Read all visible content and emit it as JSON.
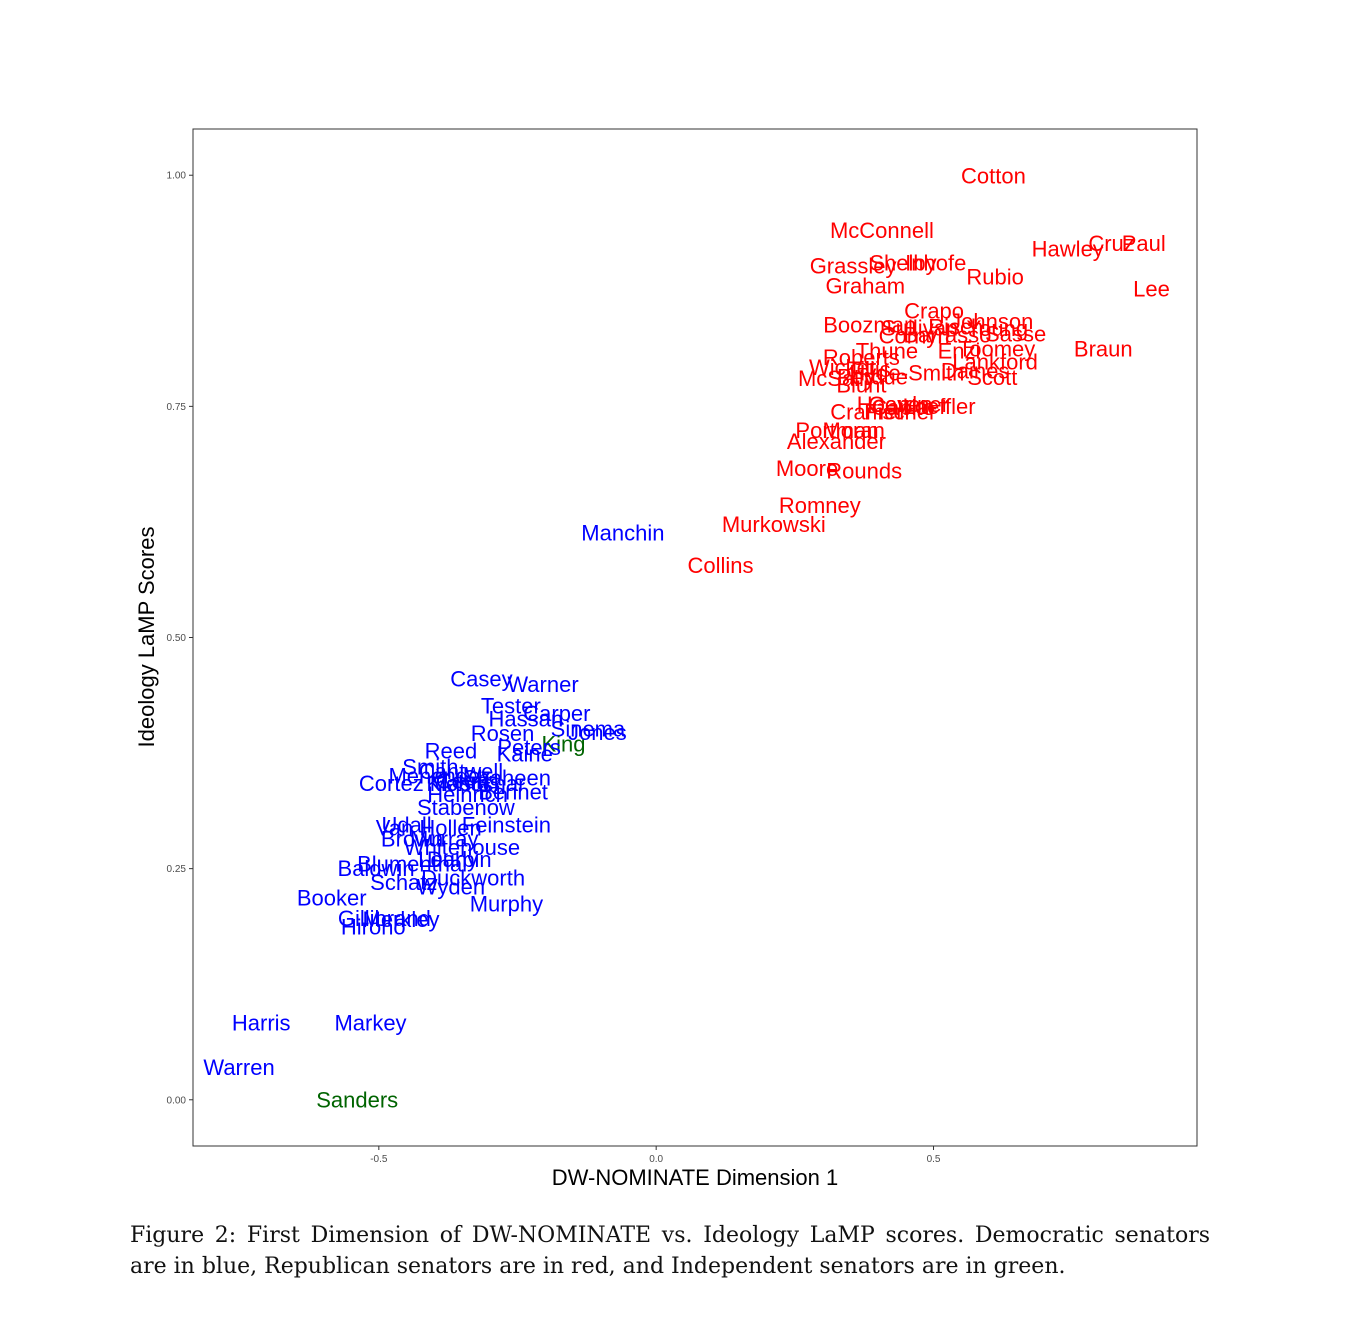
{
  "chart_data": {
    "type": "scatter",
    "title": "",
    "xlabel": "DW-NOMINATE Dimension 1",
    "ylabel": "Ideology LaMP Scores",
    "xlim": [
      -0.835,
      0.975
    ],
    "ylim": [
      -0.05,
      1.05
    ],
    "xticks": [
      {
        "v": -0.5,
        "label": "-0.5"
      },
      {
        "v": 0,
        "label": "0.0"
      },
      {
        "v": 0.5,
        "label": "0.5"
      }
    ],
    "yticks": [
      {
        "v": 0,
        "label": "0.00"
      },
      {
        "v": 0.25,
        "label": "0.25"
      },
      {
        "v": 0.5,
        "label": "0.50"
      },
      {
        "v": 0.75,
        "label": "0.75"
      },
      {
        "v": 1.0,
        "label": "1.00"
      }
    ],
    "grid": false,
    "legend": "none",
    "colors": {
      "Democratic": "#0000ff",
      "Republican": "#ff0000",
      "Independent": "#006400"
    },
    "points": [
      {
        "label": "Cotton",
        "x": 0.608,
        "y": 0.999,
        "party": "Republican"
      },
      {
        "label": "McConnell",
        "x": 0.407,
        "y": 0.94,
        "party": "Republican"
      },
      {
        "label": "Hawley",
        "x": 0.742,
        "y": 0.92,
        "party": "Republican"
      },
      {
        "label": "Cruz",
        "x": 0.821,
        "y": 0.926,
        "party": "Republican"
      },
      {
        "label": "Paul",
        "x": 0.879,
        "y": 0.926,
        "party": "Republican"
      },
      {
        "label": "Grassley",
        "x": 0.355,
        "y": 0.902,
        "party": "Republican"
      },
      {
        "label": "Shelby",
        "x": 0.445,
        "y": 0.905,
        "party": "Republican"
      },
      {
        "label": "Inhofe",
        "x": 0.504,
        "y": 0.905,
        "party": "Republican"
      },
      {
        "label": "Rubio",
        "x": 0.611,
        "y": 0.89,
        "party": "Republican"
      },
      {
        "label": "Graham",
        "x": 0.377,
        "y": 0.88,
        "party": "Republican"
      },
      {
        "label": "Lee",
        "x": 0.893,
        "y": 0.877,
        "party": "Republican"
      },
      {
        "label": "Crapo",
        "x": 0.501,
        "y": 0.853,
        "party": "Republican"
      },
      {
        "label": "Boozman",
        "x": 0.385,
        "y": 0.838,
        "party": "Republican"
      },
      {
        "label": "Johnson",
        "x": 0.605,
        "y": 0.842,
        "party": "Republican"
      },
      {
        "label": "Sullivan",
        "x": 0.475,
        "y": 0.835,
        "party": "Republican"
      },
      {
        "label": "Risch",
        "x": 0.54,
        "y": 0.836,
        "party": "Republican"
      },
      {
        "label": "Young",
        "x": 0.615,
        "y": 0.834,
        "party": "Republican"
      },
      {
        "label": "Cornyn",
        "x": 0.465,
        "y": 0.826,
        "party": "Republican"
      },
      {
        "label": "Barrasso",
        "x": 0.525,
        "y": 0.827,
        "party": "Republican"
      },
      {
        "label": "Sasse",
        "x": 0.648,
        "y": 0.828,
        "party": "Republican"
      },
      {
        "label": "Braun",
        "x": 0.806,
        "y": 0.812,
        "party": "Republican"
      },
      {
        "label": "Thune",
        "x": 0.416,
        "y": 0.81,
        "party": "Republican"
      },
      {
        "label": "Enzi",
        "x": 0.546,
        "y": 0.81,
        "party": "Republican"
      },
      {
        "label": "Toomey",
        "x": 0.614,
        "y": 0.812,
        "party": "Republican"
      },
      {
        "label": "Roberts",
        "x": 0.37,
        "y": 0.803,
        "party": "Republican"
      },
      {
        "label": "Lankford",
        "x": 0.611,
        "y": 0.798,
        "party": "Republican"
      },
      {
        "label": "Wicker",
        "x": 0.336,
        "y": 0.792,
        "party": "Republican"
      },
      {
        "label": "Tillis",
        "x": 0.384,
        "y": 0.79,
        "party": "Republican"
      },
      {
        "label": "Hyde-Smith",
        "x": 0.452,
        "y": 0.786,
        "party": "Republican"
      },
      {
        "label": "Daines",
        "x": 0.575,
        "y": 0.788,
        "party": "Republican"
      },
      {
        "label": "McSally",
        "x": 0.325,
        "y": 0.78,
        "party": "Republican"
      },
      {
        "label": "Perdue",
        "x": 0.39,
        "y": 0.782,
        "party": "Republican"
      },
      {
        "label": "Scott",
        "x": 0.606,
        "y": 0.781,
        "party": "Republican"
      },
      {
        "label": "Blunt",
        "x": 0.37,
        "y": 0.773,
        "party": "Republican"
      },
      {
        "label": "Hoeven",
        "x": 0.43,
        "y": 0.752,
        "party": "Republican"
      },
      {
        "label": "Gardner",
        "x": 0.455,
        "y": 0.752,
        "party": "Republican"
      },
      {
        "label": "Capito",
        "x": 0.445,
        "y": 0.749,
        "party": "Republican"
      },
      {
        "label": "Loeffler",
        "x": 0.51,
        "y": 0.75,
        "party": "Republican"
      },
      {
        "label": "Cramer",
        "x": 0.38,
        "y": 0.744,
        "party": "Republican"
      },
      {
        "label": "Fischer",
        "x": 0.44,
        "y": 0.744,
        "party": "Republican"
      },
      {
        "label": "Portman",
        "x": 0.326,
        "y": 0.724,
        "party": "Republican"
      },
      {
        "label": "Moran",
        "x": 0.356,
        "y": 0.724,
        "party": "Republican"
      },
      {
        "label": "Alexander",
        "x": 0.325,
        "y": 0.712,
        "party": "Republican"
      },
      {
        "label": "Moore",
        "x": 0.272,
        "y": 0.683,
        "party": "Republican"
      },
      {
        "label": "Rounds",
        "x": 0.375,
        "y": 0.68,
        "party": "Republican"
      },
      {
        "label": "Romney",
        "x": 0.295,
        "y": 0.643,
        "party": "Republican"
      },
      {
        "label": "Murkowski",
        "x": 0.212,
        "y": 0.622,
        "party": "Republican"
      },
      {
        "label": "Collins",
        "x": 0.116,
        "y": 0.578,
        "party": "Republican"
      },
      {
        "label": "Manchin",
        "x": -0.06,
        "y": 0.613,
        "party": "Democratic"
      },
      {
        "label": "Casey",
        "x": -0.315,
        "y": 0.455,
        "party": "Democratic"
      },
      {
        "label": "Warner",
        "x": -0.204,
        "y": 0.449,
        "party": "Democratic"
      },
      {
        "label": "Tester",
        "x": -0.262,
        "y": 0.426,
        "party": "Democratic"
      },
      {
        "label": "Carper",
        "x": -0.179,
        "y": 0.418,
        "party": "Democratic"
      },
      {
        "label": "Hassan",
        "x": -0.235,
        "y": 0.412,
        "party": "Democratic"
      },
      {
        "label": "Sinema",
        "x": -0.123,
        "y": 0.401,
        "party": "Democratic"
      },
      {
        "label": "Jones",
        "x": -0.106,
        "y": 0.397,
        "party": "Democratic"
      },
      {
        "label": "Rosen",
        "x": -0.277,
        "y": 0.396,
        "party": "Democratic"
      },
      {
        "label": "King",
        "x": -0.167,
        "y": 0.385,
        "party": "Independent"
      },
      {
        "label": "Peters",
        "x": -0.229,
        "y": 0.381,
        "party": "Democratic"
      },
      {
        "label": "Reed",
        "x": -0.37,
        "y": 0.377,
        "party": "Democratic"
      },
      {
        "label": "Kaine",
        "x": -0.237,
        "y": 0.374,
        "party": "Democratic"
      },
      {
        "label": "Smith",
        "x": -0.407,
        "y": 0.36,
        "party": "Democratic"
      },
      {
        "label": "Cantwell",
        "x": -0.352,
        "y": 0.355,
        "party": "Democratic"
      },
      {
        "label": "Menendez",
        "x": -0.39,
        "y": 0.35,
        "party": "Democratic"
      },
      {
        "label": "Shaheen",
        "x": -0.269,
        "y": 0.348,
        "party": "Democratic"
      },
      {
        "label": "Cortez Masto",
        "x": -0.418,
        "y": 0.342,
        "party": "Democratic"
      },
      {
        "label": "Coons",
        "x": -0.34,
        "y": 0.345,
        "party": "Democratic"
      },
      {
        "label": "Klobuchar",
        "x": -0.325,
        "y": 0.342,
        "party": "Democratic"
      },
      {
        "label": "Heinrich",
        "x": -0.34,
        "y": 0.33,
        "party": "Democratic"
      },
      {
        "label": "Bennet",
        "x": -0.258,
        "y": 0.333,
        "party": "Democratic"
      },
      {
        "label": "Stabenow",
        "x": -0.343,
        "y": 0.316,
        "party": "Democratic"
      },
      {
        "label": "Udall",
        "x": -0.45,
        "y": 0.297,
        "party": "Democratic"
      },
      {
        "label": "Feinstein",
        "x": -0.27,
        "y": 0.297,
        "party": "Democratic"
      },
      {
        "label": "Van Hollen",
        "x": -0.41,
        "y": 0.294,
        "party": "Democratic"
      },
      {
        "label": "Brown",
        "x": -0.44,
        "y": 0.282,
        "party": "Democratic"
      },
      {
        "label": "Murray",
        "x": -0.382,
        "y": 0.282,
        "party": "Democratic"
      },
      {
        "label": "Whitehouse",
        "x": -0.35,
        "y": 0.273,
        "party": "Democratic"
      },
      {
        "label": "Leahy",
        "x": -0.375,
        "y": 0.26,
        "party": "Democratic"
      },
      {
        "label": "Durbin",
        "x": -0.355,
        "y": 0.26,
        "party": "Democratic"
      },
      {
        "label": "Blumenthal",
        "x": -0.44,
        "y": 0.255,
        "party": "Democratic"
      },
      {
        "label": "Baldwin",
        "x": -0.505,
        "y": 0.25,
        "party": "Democratic"
      },
      {
        "label": "Duckworth",
        "x": -0.33,
        "y": 0.24,
        "party": "Democratic"
      },
      {
        "label": "Schatz",
        "x": -0.455,
        "y": 0.235,
        "party": "Democratic"
      },
      {
        "label": "Wyden",
        "x": -0.37,
        "y": 0.23,
        "party": "Democratic"
      },
      {
        "label": "Murphy",
        "x": -0.27,
        "y": 0.212,
        "party": "Democratic"
      },
      {
        "label": "Booker",
        "x": -0.585,
        "y": 0.218,
        "party": "Democratic"
      },
      {
        "label": "Gillibrand",
        "x": -0.49,
        "y": 0.196,
        "party": "Democratic"
      },
      {
        "label": "Merkley",
        "x": -0.46,
        "y": 0.195,
        "party": "Democratic"
      },
      {
        "label": "Hirono",
        "x": -0.51,
        "y": 0.187,
        "party": "Democratic"
      },
      {
        "label": "Harris",
        "x": -0.712,
        "y": 0.083,
        "party": "Democratic"
      },
      {
        "label": "Markey",
        "x": -0.515,
        "y": 0.083,
        "party": "Democratic"
      },
      {
        "label": "Warren",
        "x": -0.752,
        "y": 0.035,
        "party": "Democratic"
      },
      {
        "label": "Sanders",
        "x": -0.539,
        "y": 0.0,
        "party": "Independent"
      }
    ]
  },
  "caption": "Figure 2: First Dimension of DW-NOMINATE vs. Ideology LaMP scores. Democratic senators are in blue, Republican senators are in red, and Independent senators are in green."
}
